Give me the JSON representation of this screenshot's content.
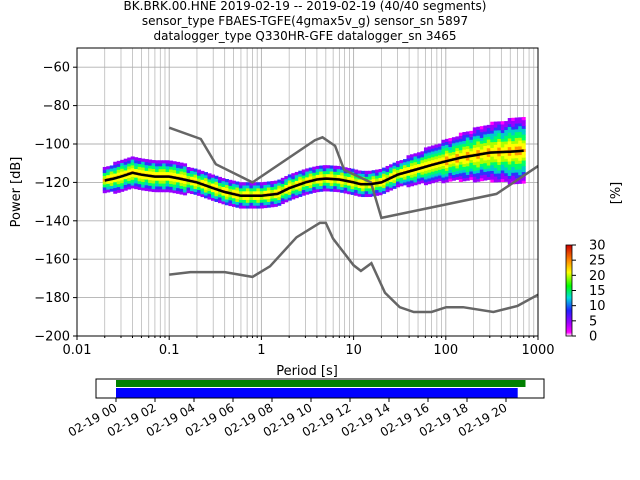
{
  "chart_data": {
    "type": "heatmap",
    "title": [
      "BK.BRK.00.HNE   2019-02-19 -- 2019-02-19  (40/40 segments)",
      "sensor_type FBAES-TGFE(4gmax5v_g) sensor_sn 5897",
      "datalogger_type Q330HR-GFE datalogger_sn 3465"
    ],
    "xlabel": "Period [s]",
    "ylabel": "Power [dB]",
    "xscale": "log",
    "xlim": [
      0.01,
      1000
    ],
    "ylim": [
      -200,
      -50
    ],
    "x_ticks": [
      {
        "value": 0.01,
        "label": "0.01"
      },
      {
        "value": 0.1,
        "label": "0.1"
      },
      {
        "value": 1,
        "label": "1"
      },
      {
        "value": 10,
        "label": "10"
      },
      {
        "value": 100,
        "label": "100"
      },
      {
        "value": 1000,
        "label": "1000"
      }
    ],
    "y_ticks": [
      {
        "value": -60,
        "label": "−60"
      },
      {
        "value": -80,
        "label": "−80"
      },
      {
        "value": -100,
        "label": "−100"
      },
      {
        "value": -120,
        "label": "−120"
      },
      {
        "value": -140,
        "label": "−140"
      },
      {
        "value": -160,
        "label": "−160"
      },
      {
        "value": -180,
        "label": "−180"
      },
      {
        "value": -200,
        "label": "−200"
      }
    ],
    "grid": true,
    "noise_model_high": {
      "x": [
        0.1,
        0.22,
        0.32,
        0.8,
        3.8,
        4.6,
        6.3,
        7.9,
        15.4,
        20,
        354.8,
        1000
      ],
      "y": [
        -91.5,
        -97.4,
        -110.5,
        -120,
        -98,
        -96.5,
        -101,
        -113.5,
        -120,
        -138.5,
        -126,
        -111.5
      ]
    },
    "noise_model_low": {
      "x": [
        0.1,
        0.17,
        0.4,
        0.8,
        1.24,
        2.4,
        4.3,
        5,
        6,
        10,
        12,
        15.6,
        21.9,
        31.6,
        45,
        70,
        101,
        154,
        328,
        600,
        1000
      ],
      "y": [
        -168,
        -166.7,
        -166.7,
        -169.2,
        -163.7,
        -148.6,
        -141.1,
        -141.1,
        -149.3,
        -163.2,
        -166.1,
        -162.1,
        -177.5,
        -185,
        -187.5,
        -187.5,
        -185,
        -185,
        -187.5,
        -184.3,
        -178.5
      ]
    },
    "mean_psd": {
      "x": [
        0.02,
        0.025,
        0.03,
        0.04,
        0.05,
        0.07,
        0.1,
        0.13,
        0.2,
        0.3,
        0.4,
        0.6,
        0.8,
        1,
        1.5,
        2,
        3,
        4,
        5,
        7,
        10,
        12,
        15,
        20,
        30,
        50,
        70,
        100,
        150,
        200,
        300,
        500,
        700
      ],
      "y": [
        -119,
        -118,
        -117,
        -115,
        -116,
        -117,
        -117,
        -118,
        -120,
        -123,
        -125,
        -127,
        -127,
        -127,
        -126,
        -123,
        -120,
        -118.5,
        -118,
        -118.5,
        -120,
        -121,
        -121,
        -120,
        -116,
        -113,
        -111,
        -109,
        -107,
        -106,
        -104.5,
        -104,
        -103.5
      ]
    },
    "colorbar": {
      "label": "[%]",
      "range": [
        0,
        30
      ],
      "ticks": [
        "0",
        "5",
        "10",
        "15",
        "20",
        "25",
        "30"
      ]
    },
    "time_axis": {
      "labels": [
        "02-19 00",
        "02-19 02",
        "02-19 04",
        "02-19 06",
        "02-19 08",
        "02-19 10",
        "02-19 12",
        "02-19 14",
        "02-19 16",
        "02-19 18",
        "02-19 20"
      ],
      "data_coverage_hours": [
        0,
        21
      ],
      "gaps_coverage_hours": [
        0,
        20.6
      ],
      "coverage_color": "#008000",
      "segment_color": "#0000ff"
    }
  }
}
